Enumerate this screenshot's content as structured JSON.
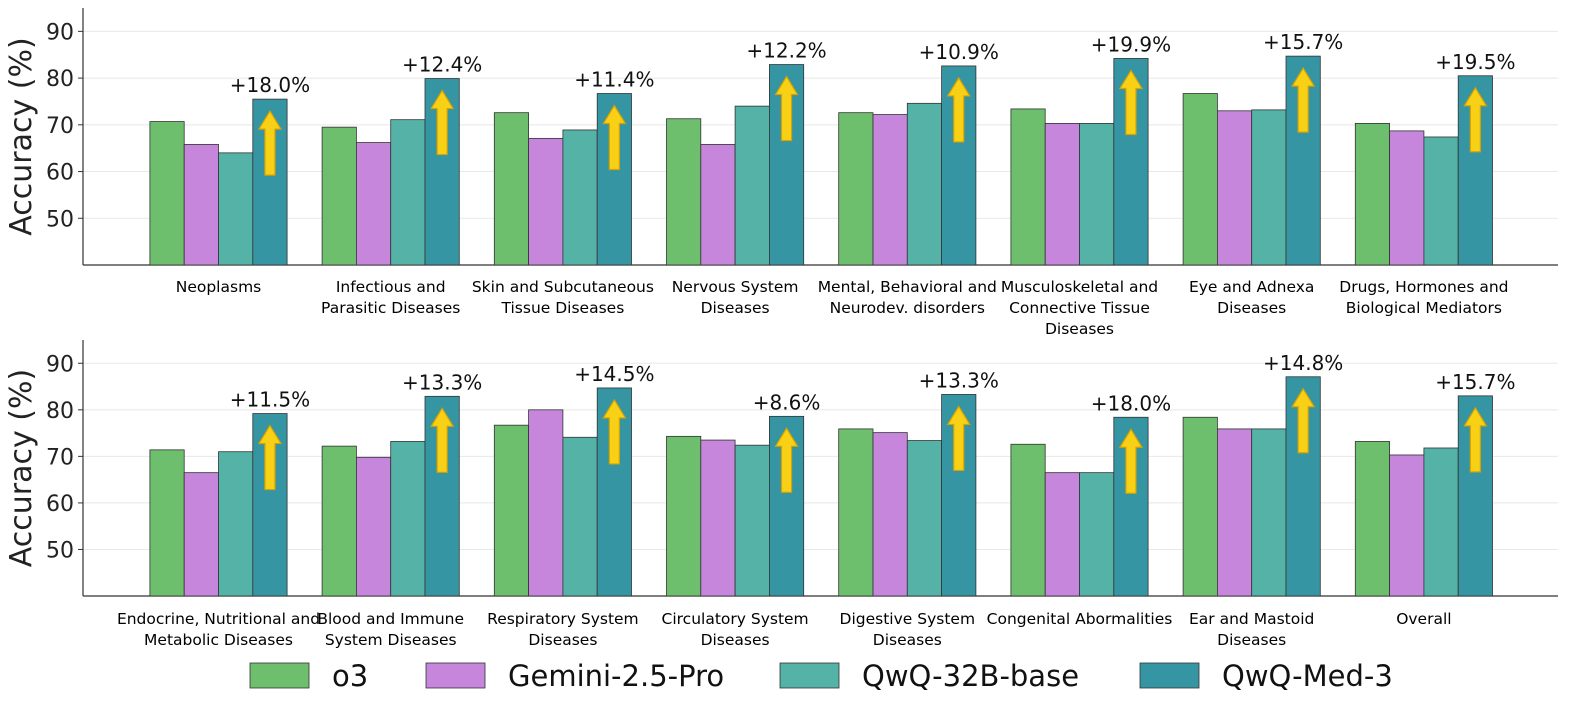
{
  "colors": {
    "o3": "#6dbf6d",
    "Gemini-2.5-Pro": "#c586dc",
    "QwQ-32B-base": "#54b2a6",
    "QwQ-Med-3": "#3595a3",
    "arrow": "#f8d117"
  },
  "legend": [
    "o3",
    "Gemini-2.5-Pro",
    "QwQ-32B-base",
    "QwQ-Med-3"
  ],
  "chart_data": [
    {
      "type": "bar",
      "ylabel": "Accuracy (%)",
      "ylim": [
        40,
        95
      ],
      "yticks": [
        50,
        60,
        70,
        80,
        90
      ],
      "grid": "horizontal",
      "legend_position": "bottom",
      "categories": [
        [
          "Neoplasms"
        ],
        [
          "Infectious and",
          "Parasitic Diseases"
        ],
        [
          "Skin and Subcutaneous",
          "Tissue Diseases"
        ],
        [
          "Nervous System",
          "Diseases"
        ],
        [
          "Mental, Behavioral and",
          "Neurodev. disorders"
        ],
        [
          "Musculoskeletal and",
          "Connective Tissue",
          "Diseases"
        ],
        [
          "Eye and Adnexa",
          "Diseases"
        ],
        [
          "Drugs, Hormones and",
          "Biological Mediators"
        ]
      ],
      "series": [
        {
          "name": "o3",
          "values": [
            70.7,
            69.5,
            72.6,
            71.3,
            72.6,
            73.4,
            76.7,
            70.3
          ]
        },
        {
          "name": "Gemini-2.5-Pro",
          "values": [
            65.8,
            66.2,
            67.1,
            65.8,
            72.2,
            70.3,
            73.0,
            68.7
          ]
        },
        {
          "name": "QwQ-32B-base",
          "values": [
            64.0,
            71.1,
            68.9,
            74.0,
            74.6,
            70.3,
            73.2,
            67.4
          ]
        },
        {
          "name": "QwQ-Med-3",
          "values": [
            75.5,
            79.9,
            76.7,
            82.9,
            82.6,
            84.2,
            84.7,
            80.5
          ]
        }
      ],
      "improvements": [
        "+18.0%",
        "+12.4%",
        "+11.4%",
        "+12.2%",
        "+10.9%",
        "+19.9%",
        "+15.7%",
        "+19.5%"
      ]
    },
    {
      "type": "bar",
      "ylabel": "Accuracy (%)",
      "ylim": [
        40,
        95
      ],
      "yticks": [
        50,
        60,
        70,
        80,
        90
      ],
      "grid": "horizontal",
      "legend_position": "bottom",
      "categories": [
        [
          "Endocrine, Nutritional and",
          "Metabolic Diseases"
        ],
        [
          "Blood and Immune",
          "System Diseases"
        ],
        [
          "Respiratory System",
          "Diseases"
        ],
        [
          "Circulatory System",
          "Diseases"
        ],
        [
          "Digestive System",
          "Diseases"
        ],
        [
          "Congenital Abormalities"
        ],
        [
          "Ear and Mastoid",
          "Diseases"
        ],
        [
          "Overall"
        ]
      ],
      "series": [
        {
          "name": "o3",
          "values": [
            71.4,
            72.2,
            76.7,
            74.3,
            75.9,
            72.6,
            78.4,
            73.2
          ]
        },
        {
          "name": "Gemini-2.5-Pro",
          "values": [
            66.5,
            69.8,
            80.0,
            73.5,
            75.1,
            66.5,
            75.9,
            70.3
          ]
        },
        {
          "name": "QwQ-32B-base",
          "values": [
            71.0,
            73.2,
            74.1,
            72.4,
            73.4,
            66.5,
            75.9,
            71.8
          ]
        },
        {
          "name": "QwQ-Med-3",
          "values": [
            79.2,
            82.9,
            84.7,
            78.6,
            83.3,
            78.4,
            87.1,
            83.0
          ]
        }
      ],
      "improvements": [
        "+11.5%",
        "+13.3%",
        "+14.5%",
        "+8.6%",
        "+13.3%",
        "+18.0%",
        "+14.8%",
        "+15.7%"
      ]
    }
  ]
}
